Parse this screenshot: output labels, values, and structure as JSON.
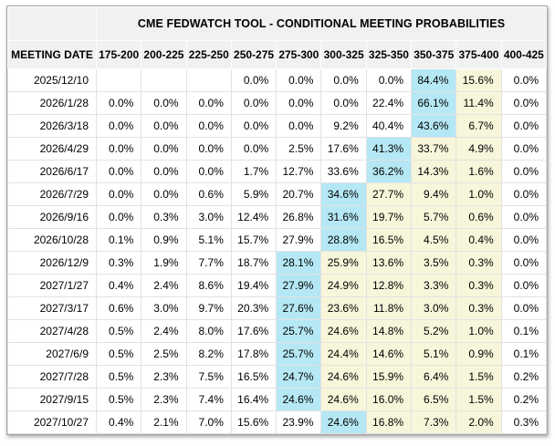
{
  "title": "CME FEDWATCH TOOL - CONDITIONAL MEETING PROBABILITIES",
  "date_column_header": "MEETING DATE",
  "rate_columns": [
    "175-200",
    "200-225",
    "225-250",
    "250-275",
    "275-300",
    "300-325",
    "325-350",
    "350-375",
    "375-400",
    "400-425"
  ],
  "colors": {
    "blue_highlight": "#b5e8f4",
    "yellow_highlight": "#f7f6da",
    "header_bg": "#f1f1f1",
    "cell_border": "#e2e2e2",
    "outer_border": "#a6a6a6"
  },
  "rows": [
    {
      "date": "2025/12/10",
      "values": [
        "",
        "",
        "",
        "0.0%",
        "0.0%",
        "0.0%",
        "0.0%",
        "84.4%",
        "15.6%",
        "0.0%"
      ],
      "blue": 7,
      "yellow": [
        8
      ]
    },
    {
      "date": "2026/1/28",
      "values": [
        "0.0%",
        "0.0%",
        "0.0%",
        "0.0%",
        "0.0%",
        "0.0%",
        "22.4%",
        "66.1%",
        "11.4%",
        "0.0%"
      ],
      "blue": 7,
      "yellow": [
        8
      ]
    },
    {
      "date": "2026/3/18",
      "values": [
        "0.0%",
        "0.0%",
        "0.0%",
        "0.0%",
        "0.0%",
        "9.2%",
        "40.4%",
        "43.6%",
        "6.7%",
        "0.0%"
      ],
      "blue": 7,
      "yellow": [
        8
      ]
    },
    {
      "date": "2026/4/29",
      "values": [
        "0.0%",
        "0.0%",
        "0.0%",
        "0.0%",
        "2.5%",
        "17.6%",
        "41.3%",
        "33.7%",
        "4.9%",
        "0.0%"
      ],
      "blue": 6,
      "yellow": [
        7,
        8
      ]
    },
    {
      "date": "2026/6/17",
      "values": [
        "0.0%",
        "0.0%",
        "0.0%",
        "1.7%",
        "12.7%",
        "33.6%",
        "36.2%",
        "14.3%",
        "1.6%",
        "0.0%"
      ],
      "blue": 6,
      "yellow": [
        7,
        8
      ]
    },
    {
      "date": "2026/7/29",
      "values": [
        "0.0%",
        "0.0%",
        "0.6%",
        "5.9%",
        "20.7%",
        "34.6%",
        "27.7%",
        "9.4%",
        "1.0%",
        "0.0%"
      ],
      "blue": 5,
      "yellow": [
        6,
        7,
        8
      ]
    },
    {
      "date": "2026/9/16",
      "values": [
        "0.0%",
        "0.3%",
        "3.0%",
        "12.4%",
        "26.8%",
        "31.6%",
        "19.7%",
        "5.7%",
        "0.6%",
        "0.0%"
      ],
      "blue": 5,
      "yellow": [
        6,
        7,
        8
      ]
    },
    {
      "date": "2026/10/28",
      "values": [
        "0.1%",
        "0.9%",
        "5.1%",
        "15.7%",
        "27.9%",
        "28.8%",
        "16.5%",
        "4.5%",
        "0.4%",
        "0.0%"
      ],
      "blue": 5,
      "yellow": [
        6,
        7,
        8
      ]
    },
    {
      "date": "2026/12/9",
      "values": [
        "0.3%",
        "1.9%",
        "7.7%",
        "18.7%",
        "28.1%",
        "25.9%",
        "13.6%",
        "3.5%",
        "0.3%",
        "0.0%"
      ],
      "blue": 4,
      "yellow": [
        5,
        6,
        7,
        8
      ]
    },
    {
      "date": "2027/1/27",
      "values": [
        "0.4%",
        "2.4%",
        "8.6%",
        "19.4%",
        "27.9%",
        "24.9%",
        "12.8%",
        "3.3%",
        "0.3%",
        "0.0%"
      ],
      "blue": 4,
      "yellow": [
        5,
        6,
        7,
        8
      ]
    },
    {
      "date": "2027/3/17",
      "values": [
        "0.6%",
        "3.0%",
        "9.7%",
        "20.3%",
        "27.6%",
        "23.6%",
        "11.8%",
        "3.0%",
        "0.3%",
        "0.0%"
      ],
      "blue": 4,
      "yellow": [
        5,
        6,
        7,
        8
      ]
    },
    {
      "date": "2027/4/28",
      "values": [
        "0.5%",
        "2.4%",
        "8.0%",
        "17.6%",
        "25.7%",
        "24.6%",
        "14.8%",
        "5.2%",
        "1.0%",
        "0.1%"
      ],
      "blue": 4,
      "yellow": [
        5,
        6,
        7,
        8
      ]
    },
    {
      "date": "2027/6/9",
      "values": [
        "0.5%",
        "2.5%",
        "8.2%",
        "17.8%",
        "25.7%",
        "24.4%",
        "14.6%",
        "5.1%",
        "0.9%",
        "0.1%"
      ],
      "blue": 4,
      "yellow": [
        5,
        6,
        7,
        8
      ]
    },
    {
      "date": "2027/7/28",
      "values": [
        "0.5%",
        "2.3%",
        "7.5%",
        "16.5%",
        "24.7%",
        "24.6%",
        "15.9%",
        "6.4%",
        "1.5%",
        "0.2%"
      ],
      "blue": 4,
      "yellow": [
        5,
        6,
        7,
        8
      ]
    },
    {
      "date": "2027/9/15",
      "values": [
        "0.5%",
        "2.3%",
        "7.4%",
        "16.4%",
        "24.6%",
        "24.6%",
        "16.0%",
        "6.5%",
        "1.5%",
        "0.2%"
      ],
      "blue": 4,
      "yellow": [
        5,
        6,
        7,
        8
      ]
    },
    {
      "date": "2027/10/27",
      "values": [
        "0.4%",
        "2.1%",
        "7.0%",
        "15.6%",
        "23.9%",
        "24.6%",
        "16.8%",
        "7.3%",
        "2.0%",
        "0.3%"
      ],
      "blue": 5,
      "yellow": [
        6,
        7,
        8
      ]
    }
  ]
}
